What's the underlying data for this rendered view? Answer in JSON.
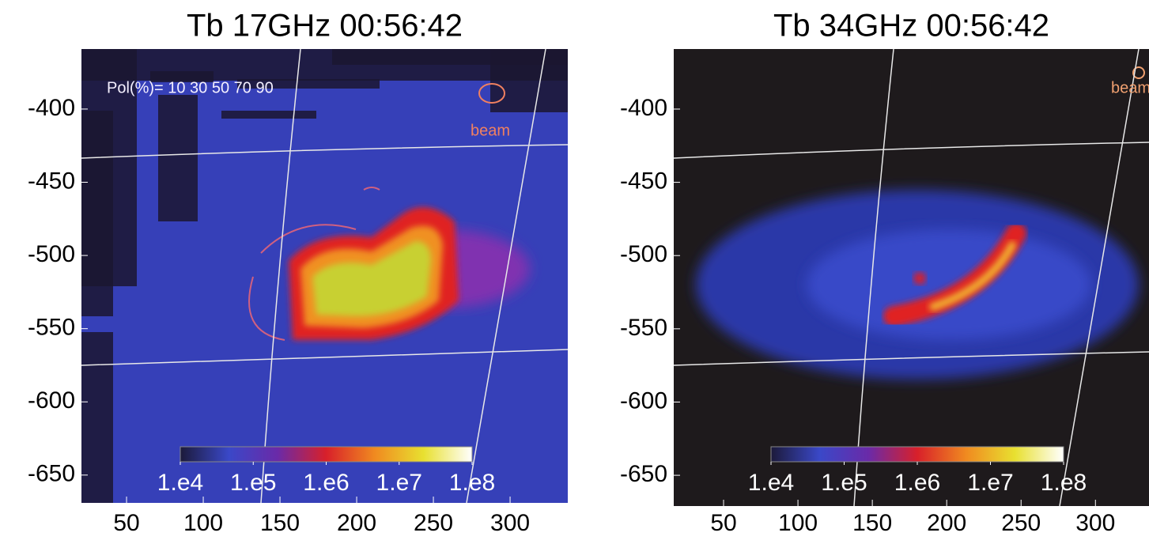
{
  "chart_data": [
    {
      "type": "heatmap",
      "title": "Tb 17GHz 00:56:42",
      "annotations": [
        "Pol(%)= 10 30 50 70 90",
        "beam"
      ],
      "xlim": [
        20.6,
        337.6
      ],
      "xticks": [
        50,
        100,
        150,
        200,
        250,
        300
      ],
      "ylim": [
        -669,
        -359
      ],
      "yticks": [
        -400,
        -450,
        -500,
        -550,
        -600,
        -650
      ],
      "colorbar": {
        "lim": [
          10000,
          100000000
        ],
        "log": true,
        "ticks": [
          {
            "value": 10000,
            "label": "1.e4"
          },
          {
            "value": 100000,
            "label": "1.e5"
          },
          {
            "value": 1000000,
            "label": "1.e6"
          },
          {
            "value": 10000000,
            "label": "1.e7"
          },
          {
            "value": 100000000,
            "label": "1.e8"
          }
        ],
        "colors": [
          "#1c1a3a",
          "#3a48c8",
          "#6a2aa8",
          "#d8202a",
          "#f08a20",
          "#e8e030",
          "#ffffff"
        ]
      }
    },
    {
      "type": "heatmap",
      "title": "Tb 34GHz 00:56:42",
      "annotations": [
        "beam"
      ],
      "xlim": [
        16.5,
        336
      ],
      "xticks": [
        50,
        100,
        150,
        200,
        250,
        300
      ],
      "ylim": [
        -671,
        -359
      ],
      "yticks": [
        -400,
        -450,
        -500,
        -550,
        -600,
        -650
      ],
      "colorbar": {
        "lim": [
          10000,
          100000000
        ],
        "log": true,
        "ticks": [
          {
            "value": 10000,
            "label": "1.e4"
          },
          {
            "value": 100000,
            "label": "1.e5"
          },
          {
            "value": 1000000,
            "label": "1.e6"
          },
          {
            "value": 10000000,
            "label": "1.e7"
          },
          {
            "value": 100000000,
            "label": "1.e8"
          }
        ],
        "colors": [
          "#1c1a3a",
          "#3a48c8",
          "#6a2aa8",
          "#d8202a",
          "#f08a20",
          "#e8e030",
          "#ffffff"
        ]
      }
    }
  ]
}
